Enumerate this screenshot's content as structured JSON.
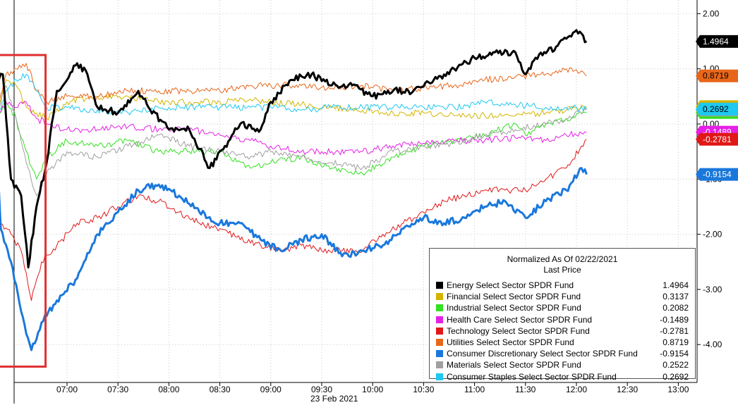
{
  "chart_data": {
    "type": "line",
    "title": "Normalized As Of 02/22/2021",
    "subtitle": "Last Price",
    "xlabel": "23 Feb 2021",
    "x_ticks": [
      "07:00",
      "07:30",
      "08:00",
      "08:30",
      "09:00",
      "09:30",
      "10:00",
      "10:30",
      "11:00",
      "11:30",
      "12:00",
      "12:30",
      "13:00"
    ],
    "ylim": [
      -4.5,
      2.1
    ],
    "y_ticks": [
      {
        "value": 2,
        "label": "2.00"
      },
      {
        "value": 1,
        "label": "1.00"
      },
      {
        "value": 0,
        "label": "0.00"
      },
      {
        "value": -1,
        "label": "-1.00"
      },
      {
        "value": -2,
        "label": "-2.00"
      },
      {
        "value": -3,
        "label": "-3.00"
      },
      {
        "value": -4,
        "label": "-4.00"
      }
    ],
    "time_range_minutes": [
      6.3,
      12.1
    ],
    "series": [
      {
        "name": "Energy Select Sector SPDR Fund",
        "last": 1.4964,
        "label": "1.4964",
        "color": "#000000",
        "text_color": "#ffffff",
        "width": 3,
        "points": [
          [
            6.3,
            0.3
          ],
          [
            6.33,
            0.8
          ],
          [
            6.37,
            0.9
          ],
          [
            6.45,
            -1
          ],
          [
            6.55,
            -1.3
          ],
          [
            6.62,
            -2.6
          ],
          [
            6.7,
            -1.5
          ],
          [
            6.8,
            -0.7
          ],
          [
            6.9,
            0.6
          ],
          [
            7.0,
            0.8
          ],
          [
            7.1,
            1.1
          ],
          [
            7.2,
            0.9
          ],
          [
            7.3,
            0.3
          ],
          [
            7.5,
            0.2
          ],
          [
            7.7,
            0.6
          ],
          [
            7.8,
            0.3
          ],
          [
            8.0,
            -0.1
          ],
          [
            8.2,
            -0.1
          ],
          [
            8.4,
            -0.8
          ],
          [
            8.55,
            -0.4
          ],
          [
            8.7,
            0.0
          ],
          [
            8.9,
            -0.1
          ],
          [
            9.0,
            0.4
          ],
          [
            9.2,
            0.8
          ],
          [
            9.4,
            0.9
          ],
          [
            9.6,
            0.7
          ],
          [
            9.8,
            0.7
          ],
          [
            10.0,
            0.5
          ],
          [
            10.2,
            0.6
          ],
          [
            10.4,
            0.6
          ],
          [
            10.6,
            0.8
          ],
          [
            10.8,
            1.0
          ],
          [
            11.0,
            1.2
          ],
          [
            11.2,
            1.3
          ],
          [
            11.4,
            1.3
          ],
          [
            11.5,
            0.9
          ],
          [
            11.6,
            1.2
          ],
          [
            11.8,
            1.4
          ],
          [
            12.0,
            1.7
          ],
          [
            12.1,
            1.5
          ]
        ]
      },
      {
        "name": "Financial Select Sector SPDR Fund",
        "last": 0.3137,
        "label": "0.3137",
        "color": "#d4b400",
        "text_color": "#000000",
        "width": 1,
        "points": [
          [
            6.3,
            0.1
          ],
          [
            6.4,
            0.8
          ],
          [
            6.5,
            0.7
          ],
          [
            6.6,
            0.3
          ],
          [
            6.7,
            0.2
          ],
          [
            6.8,
            0.1
          ],
          [
            7.0,
            0.4
          ],
          [
            7.3,
            0.5
          ],
          [
            7.6,
            0.5
          ],
          [
            7.9,
            0.4
          ],
          [
            8.2,
            0.4
          ],
          [
            8.5,
            0.4
          ],
          [
            8.8,
            0.45
          ],
          [
            9.0,
            0.4
          ],
          [
            9.3,
            0.35
          ],
          [
            9.6,
            0.3
          ],
          [
            9.9,
            0.25
          ],
          [
            10.2,
            0.2
          ],
          [
            10.5,
            0.2
          ],
          [
            10.8,
            0.15
          ],
          [
            11.1,
            0.15
          ],
          [
            11.4,
            0.15
          ],
          [
            11.7,
            0.2
          ],
          [
            11.9,
            0.25
          ],
          [
            12.1,
            0.3137
          ]
        ]
      },
      {
        "name": "Industrial Select Sector SPDR Fund",
        "last": 0.2082,
        "label": "0.2082",
        "color": "#33e022",
        "text_color": "#000000",
        "width": 1,
        "points": [
          [
            6.3,
            0.05
          ],
          [
            6.4,
            0.4
          ],
          [
            6.5,
            0.1
          ],
          [
            6.6,
            -0.5
          ],
          [
            6.7,
            -1.0
          ],
          [
            6.8,
            -0.6
          ],
          [
            7.0,
            -0.3
          ],
          [
            7.3,
            -0.4
          ],
          [
            7.6,
            -0.3
          ],
          [
            7.9,
            -0.5
          ],
          [
            8.2,
            -0.5
          ],
          [
            8.5,
            -0.5
          ],
          [
            8.8,
            -0.8
          ],
          [
            9.0,
            -0.7
          ],
          [
            9.3,
            -0.6
          ],
          [
            9.6,
            -0.8
          ],
          [
            9.9,
            -0.9
          ],
          [
            10.2,
            -0.6
          ],
          [
            10.5,
            -0.4
          ],
          [
            10.8,
            -0.3
          ],
          [
            11.1,
            -0.2
          ],
          [
            11.4,
            0.0
          ],
          [
            11.5,
            -0.2
          ],
          [
            11.7,
            0.0
          ],
          [
            11.9,
            0.1
          ],
          [
            12.1,
            0.2082
          ]
        ]
      },
      {
        "name": "Health Care Select Sector SPDR Fund",
        "last": -0.1489,
        "label": "-0.1489",
        "color": "#e620e6",
        "text_color": "#ffffff",
        "width": 1,
        "points": [
          [
            6.3,
            0.05
          ],
          [
            6.4,
            0.4
          ],
          [
            6.5,
            0.3
          ],
          [
            6.6,
            0.4
          ],
          [
            6.7,
            0.1
          ],
          [
            6.8,
            0.0
          ],
          [
            7.0,
            -0.1
          ],
          [
            7.3,
            -0.1
          ],
          [
            7.6,
            -0.05
          ],
          [
            7.9,
            -0.1
          ],
          [
            8.2,
            -0.1
          ],
          [
            8.5,
            -0.2
          ],
          [
            8.8,
            -0.3
          ],
          [
            9.0,
            -0.4
          ],
          [
            9.3,
            -0.5
          ],
          [
            9.6,
            -0.5
          ],
          [
            9.9,
            -0.5
          ],
          [
            10.2,
            -0.4
          ],
          [
            10.5,
            -0.35
          ],
          [
            10.8,
            -0.3
          ],
          [
            11.1,
            -0.3
          ],
          [
            11.4,
            -0.25
          ],
          [
            11.7,
            -0.3
          ],
          [
            11.9,
            -0.2
          ],
          [
            12.1,
            -0.1489
          ]
        ]
      },
      {
        "name": "Technology Select Sector SPDR Fund",
        "last": -0.2781,
        "label": "-0.2781",
        "color": "#e01818",
        "text_color": "#ffffff",
        "width": 1,
        "points": [
          [
            6.3,
            0.05
          ],
          [
            6.35,
            -1.8
          ],
          [
            6.45,
            -2.0
          ],
          [
            6.55,
            -2.3
          ],
          [
            6.65,
            -3.2
          ],
          [
            6.75,
            -2.5
          ],
          [
            6.9,
            -2.2
          ],
          [
            7.1,
            -1.8
          ],
          [
            7.3,
            -1.7
          ],
          [
            7.5,
            -1.5
          ],
          [
            7.7,
            -1.3
          ],
          [
            7.9,
            -1.4
          ],
          [
            8.1,
            -1.6
          ],
          [
            8.3,
            -1.8
          ],
          [
            8.5,
            -1.9
          ],
          [
            8.7,
            -2.1
          ],
          [
            8.9,
            -2.2
          ],
          [
            9.1,
            -2.3
          ],
          [
            9.3,
            -2.2
          ],
          [
            9.5,
            -2.3
          ],
          [
            9.7,
            -2.3
          ],
          [
            9.9,
            -2.3
          ],
          [
            10.1,
            -2.0
          ],
          [
            10.3,
            -1.8
          ],
          [
            10.5,
            -1.6
          ],
          [
            10.7,
            -1.4
          ],
          [
            10.9,
            -1.3
          ],
          [
            11.1,
            -1.2
          ],
          [
            11.3,
            -1.2
          ],
          [
            11.5,
            -1.2
          ],
          [
            11.7,
            -1.0
          ],
          [
            11.9,
            -0.8
          ],
          [
            12.05,
            -0.4
          ],
          [
            12.1,
            -0.2781
          ]
        ]
      },
      {
        "name": "Utilities Select Sector SPDR Fund",
        "last": 0.8719,
        "label": "0.8719",
        "color": "#e8661a",
        "text_color": "#000000",
        "width": 1,
        "points": [
          [
            6.3,
            0.1
          ],
          [
            6.4,
            0.9
          ],
          [
            6.5,
            1.0
          ],
          [
            6.6,
            1.1
          ],
          [
            6.7,
            0.6
          ],
          [
            6.8,
            0.4
          ],
          [
            7.0,
            0.5
          ],
          [
            7.3,
            0.5
          ],
          [
            7.6,
            0.6
          ],
          [
            7.9,
            0.6
          ],
          [
            8.2,
            0.6
          ],
          [
            8.5,
            0.6
          ],
          [
            8.8,
            0.7
          ],
          [
            9.0,
            0.7
          ],
          [
            9.3,
            0.7
          ],
          [
            9.6,
            0.65
          ],
          [
            9.9,
            0.7
          ],
          [
            10.2,
            0.6
          ],
          [
            10.5,
            0.65
          ],
          [
            10.8,
            0.7
          ],
          [
            11.1,
            0.8
          ],
          [
            11.4,
            0.85
          ],
          [
            11.7,
            0.9
          ],
          [
            11.9,
            1.0
          ],
          [
            12.1,
            0.8719
          ]
        ]
      },
      {
        "name": "Consumer Discretionary Select Sector SPDR Fund",
        "last": -0.9154,
        "label": "-0.9154",
        "color": "#1a78dc",
        "text_color": "#ffffff",
        "width": 3,
        "points": [
          [
            6.3,
            0.0
          ],
          [
            6.35,
            -1.9
          ],
          [
            6.45,
            -2.5
          ],
          [
            6.55,
            -3.4
          ],
          [
            6.65,
            -4.1
          ],
          [
            6.75,
            -3.6
          ],
          [
            6.9,
            -3.2
          ],
          [
            7.1,
            -2.8
          ],
          [
            7.3,
            -2.0
          ],
          [
            7.5,
            -1.6
          ],
          [
            7.7,
            -1.2
          ],
          [
            7.9,
            -1.1
          ],
          [
            8.1,
            -1.3
          ],
          [
            8.3,
            -1.6
          ],
          [
            8.5,
            -1.8
          ],
          [
            8.7,
            -1.8
          ],
          [
            8.9,
            -2.1
          ],
          [
            9.1,
            -2.3
          ],
          [
            9.3,
            -2.1
          ],
          [
            9.5,
            -2.0
          ],
          [
            9.7,
            -2.4
          ],
          [
            9.9,
            -2.3
          ],
          [
            10.1,
            -2.2
          ],
          [
            10.3,
            -1.9
          ],
          [
            10.5,
            -1.7
          ],
          [
            10.7,
            -1.8
          ],
          [
            10.9,
            -1.7
          ],
          [
            11.1,
            -1.5
          ],
          [
            11.3,
            -1.4
          ],
          [
            11.5,
            -1.7
          ],
          [
            11.7,
            -1.4
          ],
          [
            11.9,
            -1.2
          ],
          [
            12.05,
            -0.8
          ],
          [
            12.1,
            -0.9154
          ]
        ]
      },
      {
        "name": "Materials Select Sector SPDR Fund",
        "last": 0.2522,
        "label": "0.2522",
        "color": "#a0a0a0",
        "text_color": "#000000",
        "width": 1,
        "points": [
          [
            6.3,
            0.05
          ],
          [
            6.4,
            0.7
          ],
          [
            6.5,
            0.1
          ],
          [
            6.6,
            -0.7
          ],
          [
            6.7,
            -1.3
          ],
          [
            6.8,
            -0.9
          ],
          [
            7.0,
            -0.5
          ],
          [
            7.3,
            -0.6
          ],
          [
            7.6,
            -0.4
          ],
          [
            7.9,
            -0.2
          ],
          [
            8.2,
            -0.4
          ],
          [
            8.5,
            -0.5
          ],
          [
            8.8,
            -0.6
          ],
          [
            9.0,
            -0.5
          ],
          [
            9.3,
            -0.6
          ],
          [
            9.6,
            -0.7
          ],
          [
            9.9,
            -0.8
          ],
          [
            10.2,
            -0.5
          ],
          [
            10.5,
            -0.4
          ],
          [
            10.8,
            -0.35
          ],
          [
            11.1,
            -0.2
          ],
          [
            11.4,
            -0.1
          ],
          [
            11.7,
            0.0
          ],
          [
            11.9,
            0.1
          ],
          [
            12.1,
            0.2522
          ]
        ]
      },
      {
        "name": "Consumer Staples Select Sector SPDR Fund",
        "last": 0.2692,
        "label": "0.2692",
        "color": "#1ec8f0",
        "text_color": "#000000",
        "width": 1,
        "points": [
          [
            6.3,
            0.05
          ],
          [
            6.4,
            0.6
          ],
          [
            6.5,
            0.8
          ],
          [
            6.6,
            0.9
          ],
          [
            6.7,
            0.6
          ],
          [
            6.8,
            0.3
          ],
          [
            7.0,
            0.3
          ],
          [
            7.3,
            0.25
          ],
          [
            7.6,
            0.2
          ],
          [
            7.9,
            0.3
          ],
          [
            8.2,
            0.3
          ],
          [
            8.5,
            0.3
          ],
          [
            8.8,
            0.3
          ],
          [
            9.0,
            0.3
          ],
          [
            9.3,
            0.25
          ],
          [
            9.6,
            0.3
          ],
          [
            9.9,
            0.3
          ],
          [
            10.2,
            0.3
          ],
          [
            10.5,
            0.3
          ],
          [
            10.8,
            0.3
          ],
          [
            11.1,
            0.4
          ],
          [
            11.4,
            0.35
          ],
          [
            11.7,
            0.3
          ],
          [
            11.9,
            0.3
          ],
          [
            12.1,
            0.2692
          ]
        ]
      }
    ]
  },
  "legend": {
    "title": "Normalized As Of 02/22/2021",
    "subtitle": "Last Price",
    "items": [
      {
        "name": "Energy Select Sector SPDR Fund",
        "value": "1.4964",
        "color": "#000000"
      },
      {
        "name": "Financial Select Sector SPDR Fund",
        "value": "0.3137",
        "color": "#d4b400"
      },
      {
        "name": "Industrial Select Sector SPDR Fund",
        "value": "0.2082",
        "color": "#33e022"
      },
      {
        "name": "Health Care Select Sector SPDR Fund",
        "value": "-0.1489",
        "color": "#e620e6"
      },
      {
        "name": "Technology Select Sector SPDR Fund",
        "value": "-0.2781",
        "color": "#e01818"
      },
      {
        "name": "Utilities Select Sector SPDR Fund",
        "value": "0.8719",
        "color": "#e8661a"
      },
      {
        "name": "Consumer Discretionary Select Sector SPDR Fund",
        "value": "-0.9154",
        "color": "#1a78dc"
      },
      {
        "name": "Materials Select Sector SPDR Fund",
        "value": "0.2522",
        "color": "#a0a0a0"
      },
      {
        "name": "Consumer Staples Select Sector SPDR Fund",
        "value": "0.2692",
        "color": "#1ec8f0"
      }
    ]
  },
  "highlight_box": {
    "x_range": [
      6.3,
      6.72
    ],
    "y_range": [
      -4.4,
      1.25
    ],
    "color": "#e03030"
  }
}
